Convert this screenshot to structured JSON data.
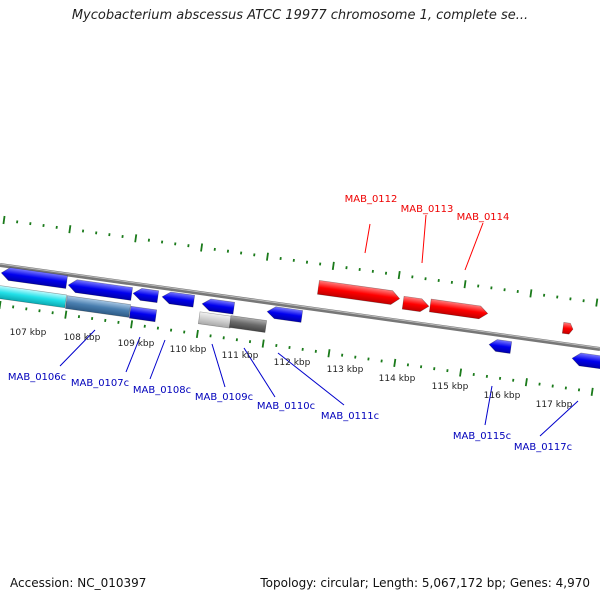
{
  "title": "Mycobacterium abscessus ATCC 19977 chromosome 1, complete se...",
  "footer": {
    "accession": "Accession: NC_010397",
    "summary": "Topology: circular; Length: 5,067,172 bp; Genes: 4,970"
  },
  "colors": {
    "forward_gene": "#ff0000",
    "reverse_gene": "#0000ee",
    "tick": "#1a7a1a",
    "backbone": "#777777",
    "cyan_feature": "#22e0e8",
    "steel_feature": "#4a7fb0",
    "gray_feature": "#7a7a7a"
  },
  "kbp_labels": [
    "107 kbp",
    "108 kbp",
    "109 kbp",
    "110 kbp",
    "111 kbp",
    "112 kbp",
    "113 kbp",
    "114 kbp",
    "115 kbp",
    "116 kbp",
    "117 kbp"
  ],
  "forward_labels": [
    "MAB_0112",
    "MAB_0113",
    "MAB_0114"
  ],
  "reverse_labels": [
    "MAB_0106c",
    "MAB_0107c",
    "MAB_0108c",
    "MAB_0109c",
    "MAB_0110c",
    "MAB_0111c",
    "MAB_0115c",
    "MAB_0117c"
  ]
}
